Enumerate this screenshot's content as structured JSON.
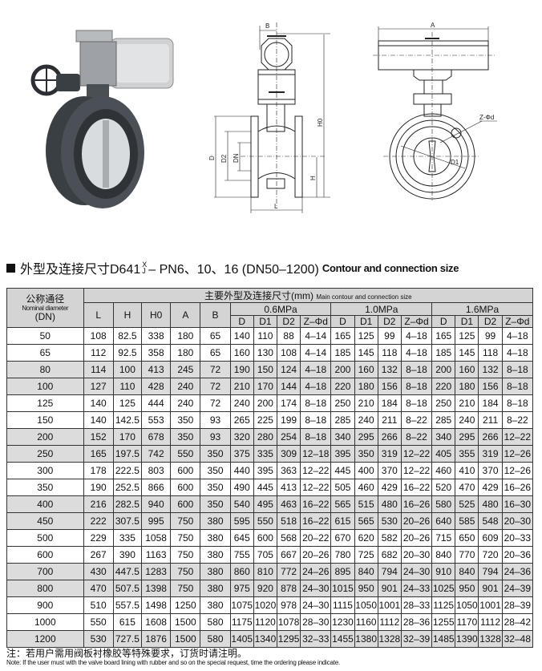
{
  "title": {
    "prefix": "外型及连接尺寸D641",
    "frac_top": "X",
    "frac_bottom": "J",
    "suffix": "– PN6、10、16 (DN50–1200)",
    "english": "Contour and connection size"
  },
  "drawing_labels": {
    "B": "B",
    "H0": "H0",
    "D": "D",
    "D2": "D2",
    "DN": "DN",
    "H": "H",
    "L": "L",
    "A": "A",
    "Zd": "Z-Φd",
    "D1": "D1"
  },
  "table": {
    "dn_header_zh": "公称通径",
    "dn_header_en": "Nominal diameter",
    "dn_header_unit": "(DN)",
    "main_header_zh": "主要外型及连接尺寸(mm)",
    "main_header_en": "Main contour and connection size",
    "dim_cols": [
      "L",
      "H",
      "H0",
      "A",
      "B"
    ],
    "pressure_groups": [
      "0.6MPa",
      "1.0MPa",
      "1.6MPa"
    ],
    "sub_cols": [
      "D",
      "D1",
      "D2",
      "Z–Φd"
    ],
    "rows": [
      [
        "50",
        "108",
        "82.5",
        "338",
        "180",
        "65",
        "140",
        "110",
        "88",
        "4–14",
        "165",
        "125",
        "99",
        "4–18",
        "165",
        "125",
        "99",
        "4–18"
      ],
      [
        "65",
        "112",
        "92.5",
        "358",
        "180",
        "65",
        "160",
        "130",
        "108",
        "4–14",
        "185",
        "145",
        "118",
        "4–18",
        "185",
        "145",
        "118",
        "4–18"
      ],
      [
        "80",
        "114",
        "100",
        "413",
        "245",
        "72",
        "190",
        "150",
        "124",
        "4–18",
        "200",
        "160",
        "132",
        "8–18",
        "200",
        "160",
        "132",
        "8–18"
      ],
      [
        "100",
        "127",
        "110",
        "428",
        "240",
        "72",
        "210",
        "170",
        "144",
        "4–18",
        "220",
        "180",
        "156",
        "8–18",
        "220",
        "180",
        "156",
        "8–18"
      ],
      [
        "125",
        "140",
        "125",
        "444",
        "240",
        "72",
        "240",
        "200",
        "174",
        "8–18",
        "250",
        "210",
        "184",
        "8–18",
        "250",
        "210",
        "184",
        "8–18"
      ],
      [
        "150",
        "140",
        "142.5",
        "553",
        "350",
        "93",
        "265",
        "225",
        "199",
        "8–18",
        "285",
        "240",
        "211",
        "8–22",
        "285",
        "240",
        "211",
        "8–22"
      ],
      [
        "200",
        "152",
        "170",
        "678",
        "350",
        "93",
        "320",
        "280",
        "254",
        "8–18",
        "340",
        "295",
        "266",
        "8–22",
        "340",
        "295",
        "266",
        "12–22"
      ],
      [
        "250",
        "165",
        "197.5",
        "742",
        "550",
        "350",
        "375",
        "335",
        "309",
        "12–18",
        "395",
        "350",
        "319",
        "12–22",
        "405",
        "355",
        "319",
        "12–26"
      ],
      [
        "300",
        "178",
        "222.5",
        "803",
        "600",
        "350",
        "440",
        "395",
        "363",
        "12–22",
        "445",
        "400",
        "370",
        "12–22",
        "460",
        "410",
        "370",
        "12–26"
      ],
      [
        "350",
        "190",
        "252.5",
        "866",
        "600",
        "350",
        "490",
        "445",
        "413",
        "12–22",
        "505",
        "460",
        "429",
        "16–22",
        "520",
        "470",
        "429",
        "16–26"
      ],
      [
        "400",
        "216",
        "282.5",
        "940",
        "600",
        "350",
        "540",
        "495",
        "463",
        "16–22",
        "565",
        "515",
        "480",
        "16–26",
        "580",
        "525",
        "480",
        "16–30"
      ],
      [
        "450",
        "222",
        "307.5",
        "995",
        "750",
        "380",
        "595",
        "550",
        "518",
        "16–22",
        "615",
        "565",
        "530",
        "20–26",
        "640",
        "585",
        "548",
        "20–30"
      ],
      [
        "500",
        "229",
        "335",
        "1058",
        "750",
        "380",
        "645",
        "600",
        "568",
        "20–22",
        "670",
        "620",
        "582",
        "20–26",
        "715",
        "650",
        "609",
        "20–33"
      ],
      [
        "600",
        "267",
        "390",
        "1163",
        "750",
        "380",
        "755",
        "705",
        "667",
        "20–26",
        "780",
        "725",
        "682",
        "20–30",
        "840",
        "770",
        "720",
        "20–36"
      ],
      [
        "700",
        "430",
        "447.5",
        "1283",
        "750",
        "380",
        "860",
        "810",
        "772",
        "24–26",
        "895",
        "840",
        "794",
        "24–30",
        "910",
        "840",
        "794",
        "24–36"
      ],
      [
        "800",
        "470",
        "507.5",
        "1398",
        "750",
        "380",
        "975",
        "920",
        "878",
        "24–30",
        "1015",
        "950",
        "901",
        "24–33",
        "1025",
        "950",
        "901",
        "24–39"
      ],
      [
        "900",
        "510",
        "557.5",
        "1498",
        "1250",
        "380",
        "1075",
        "1020",
        "978",
        "24–30",
        "1115",
        "1050",
        "1001",
        "28–33",
        "1125",
        "1050",
        "1001",
        "28–39"
      ],
      [
        "1000",
        "550",
        "615",
        "1608",
        "1500",
        "580",
        "1175",
        "1120",
        "1078",
        "28–30",
        "1230",
        "1160",
        "1112",
        "28–36",
        "1255",
        "1170",
        "1112",
        "28–42"
      ],
      [
        "1200",
        "530",
        "727.5",
        "1876",
        "1500",
        "580",
        "1405",
        "1340",
        "1295",
        "32–33",
        "1455",
        "1380",
        "1328",
        "32–39",
        "1485",
        "1390",
        "1328",
        "32–48"
      ]
    ],
    "shaded_rows": [
      2,
      3,
      6,
      7,
      10,
      11,
      14,
      15,
      18
    ]
  },
  "notes": {
    "zh": "注：若用户需用阀板衬橡胶等特殊要求，订货时请注明。",
    "en": "Note: If the user must with the valve board lining with rubber and so on the special request, time the ordering please indicate."
  },
  "colors": {
    "header_bg": "#d4d4d4",
    "shaded_row_bg": "#dcdcdc",
    "valve_body": "#3a3f44",
    "actuator": "#c8cacc"
  }
}
